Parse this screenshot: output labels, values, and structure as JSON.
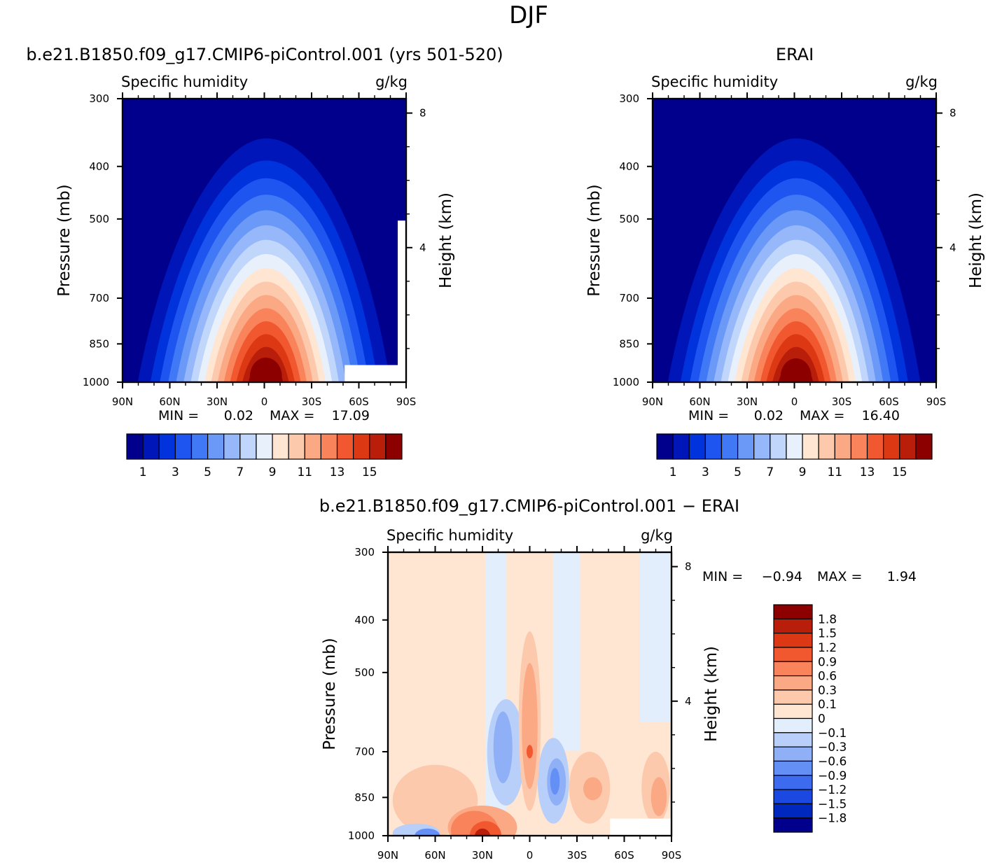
{
  "figure": {
    "main_title": "DJF"
  },
  "chart_data": [
    {
      "type": "heatmap",
      "title": "b.e21.B1850.f09_g17.CMIP6-piControl.001 (yrs 501-520)",
      "variable": "Specific humidity",
      "units": "g/kg",
      "xlabel": "",
      "ylabel": "Pressure (mb)",
      "y2label": "Height (km)",
      "x_ticks": [
        "90N",
        "60N",
        "30N",
        "0",
        "30S",
        "60S",
        "90S"
      ],
      "x_values": [
        90,
        60,
        30,
        0,
        -30,
        -60,
        -90
      ],
      "y_ticks": [
        "300",
        "400",
        "500",
        "700",
        "850",
        "1000"
      ],
      "y_values": [
        300,
        400,
        500,
        700,
        850,
        1000
      ],
      "y2_ticks": [
        "8",
        "4"
      ],
      "y2_values": [
        8,
        4
      ],
      "ylim": [
        1000,
        300
      ],
      "stats": {
        "min_label": "MIN =",
        "min": "0.02",
        "max_label": "MAX =",
        "max": "17.09"
      },
      "peak": {
        "lat": -1,
        "value": 17.09
      },
      "missing_region": {
        "lat_from": -51,
        "lat_to": -90,
        "p_top": 930,
        "p_bottom": 1000
      },
      "colorbar": {
        "orientation": "horizontal",
        "tick_labels": [
          "1",
          "3",
          "5",
          "7",
          "9",
          "11",
          "13",
          "15"
        ],
        "levels": [
          0,
          1,
          2,
          3,
          4,
          5,
          6,
          7,
          8,
          9,
          10,
          11,
          12,
          13,
          14,
          15
        ],
        "colors": [
          "#00008C",
          "#0016B8",
          "#0033DC",
          "#1E55F0",
          "#4178F5",
          "#6B99F7",
          "#96B8FA",
          "#C1D6FB",
          "#E8F0FC",
          "#FEE6D3",
          "#FDC9AD",
          "#FBA884",
          "#F9835A",
          "#F2582F",
          "#DD3814",
          "#B81E0A",
          "#8C0000"
        ]
      }
    },
    {
      "type": "heatmap",
      "title": "ERAI",
      "variable": "Specific humidity",
      "units": "g/kg",
      "xlabel": "",
      "ylabel": "Pressure (mb)",
      "y2label": "Height (km)",
      "x_ticks": [
        "90N",
        "60N",
        "30N",
        "0",
        "30S",
        "60S",
        "90S"
      ],
      "x_values": [
        90,
        60,
        30,
        0,
        -30,
        -60,
        -90
      ],
      "y_ticks": [
        "300",
        "400",
        "500",
        "700",
        "850",
        "1000"
      ],
      "y_values": [
        300,
        400,
        500,
        700,
        850,
        1000
      ],
      "y2_ticks": [
        "8",
        "4"
      ],
      "y2_values": [
        8,
        4
      ],
      "ylim": [
        1000,
        300
      ],
      "stats": {
        "min_label": "MIN =",
        "min": "0.02",
        "max_label": "MAX =",
        "max": "16.40"
      },
      "peak": {
        "lat": -1,
        "value": 16.4
      },
      "colorbar": {
        "orientation": "horizontal",
        "tick_labels": [
          "1",
          "3",
          "5",
          "7",
          "9",
          "11",
          "13",
          "15"
        ],
        "levels": [
          0,
          1,
          2,
          3,
          4,
          5,
          6,
          7,
          8,
          9,
          10,
          11,
          12,
          13,
          14,
          15
        ],
        "colors": [
          "#00008C",
          "#0016B8",
          "#0033DC",
          "#1E55F0",
          "#4178F5",
          "#6B99F7",
          "#96B8FA",
          "#C1D6FB",
          "#E8F0FC",
          "#FEE6D3",
          "#FDC9AD",
          "#FBA884",
          "#F9835A",
          "#F2582F",
          "#DD3814",
          "#B81E0A",
          "#8C0000"
        ]
      }
    },
    {
      "type": "heatmap",
      "title": "b.e21.B1850.f09_g17.CMIP6-piControl.001 − ERAI",
      "variable": "Specific humidity",
      "units": "g/kg",
      "xlabel": "",
      "ylabel": "Pressure (mb)",
      "y2label": "Height (km)",
      "x_ticks": [
        "90N",
        "60N",
        "30N",
        "0",
        "30S",
        "60S",
        "90S"
      ],
      "x_values": [
        90,
        60,
        30,
        0,
        -30,
        -60,
        -90
      ],
      "y_ticks": [
        "300",
        "400",
        "500",
        "700",
        "850",
        "1000"
      ],
      "y_values": [
        300,
        400,
        500,
        700,
        850,
        1000
      ],
      "y2_ticks": [
        "8",
        "4"
      ],
      "y2_values": [
        8,
        4
      ],
      "ylim": [
        1000,
        300
      ],
      "stats": {
        "min_label": "MIN =",
        "min": "−0.94",
        "max_label": "MAX =",
        "max": "1.94"
      },
      "missing_region": {
        "lat_from": -51,
        "lat_to": -90,
        "p_top": 930,
        "p_bottom": 1000
      },
      "colorbar": {
        "orientation": "vertical",
        "tick_labels": [
          "1.8",
          "1.5",
          "1.2",
          "0.9",
          "0.6",
          "0.3",
          "0.1",
          "0",
          "−0.1",
          "−0.3",
          "−0.6",
          "−0.9",
          "−1.2",
          "−1.5",
          "−1.8"
        ],
        "colors": [
          "#8C0000",
          "#B81E0A",
          "#DD3814",
          "#F2582F",
          "#F9835A",
          "#FBA884",
          "#FDC9AD",
          "#FEE6D3",
          "#E3EEFC",
          "#B8CFF9",
          "#8FB0F7",
          "#648FF4",
          "#3C6BF0",
          "#1A48E0",
          "#0028BE",
          "#00008C"
        ]
      }
    }
  ]
}
